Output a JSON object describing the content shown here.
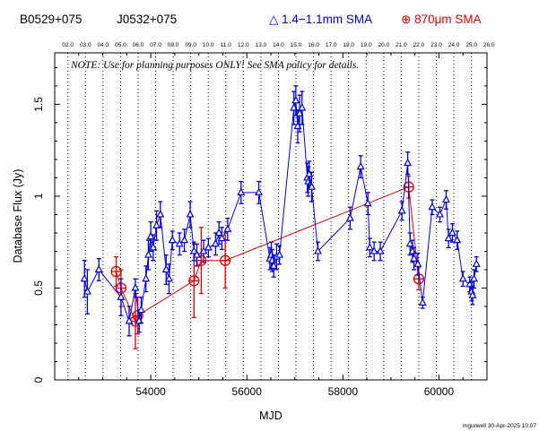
{
  "header": {
    "source1": "B0529+075",
    "source2": "J0532+075",
    "legend_sma_label": "1.4−1.1mm SMA",
    "legend_870_label": "870μm SMA"
  },
  "footer": {
    "stamp": "mgurwell 30-Apr-2025 10:07"
  },
  "colors": {
    "band_1mm": "#0000dd",
    "band_870": "#dd0000",
    "frame": "#000000"
  },
  "chart_data": {
    "type": "scatter",
    "xlabel": "MJD",
    "ylabel": "Database Flux (Jy)",
    "note": "NOTE: Use for planning purposes ONLY!  See SMA policy for details.",
    "xlim": [
      52000,
      61000
    ],
    "ylim": [
      0,
      1.78
    ],
    "x_ticks": [
      54000,
      56000,
      58000,
      60000
    ],
    "y_ticks": [
      0,
      0.5,
      1,
      1.5
    ],
    "year_labels": [
      "02.0",
      "03.0",
      "04.0",
      "05.0",
      "06.0",
      "07.0",
      "08.0",
      "09.0",
      "10.0",
      "11.0",
      "12.0",
      "13.0",
      "14.0",
      "15.0",
      "16.0",
      "17.0",
      "18.0",
      "19.0",
      "20.0",
      "21.0",
      "22.0",
      "23.0",
      "24.0",
      "25.0",
      "26.0"
    ],
    "year_mjd": [
      52275,
      52640,
      53005,
      53371,
      53736,
      54101,
      54466,
      54832,
      55197,
      55562,
      55927,
      56293,
      56658,
      57023,
      57388,
      57754,
      58119,
      58484,
      58849,
      59215,
      59580,
      59945,
      60310,
      60676,
      61041
    ],
    "legend_position": "top-right",
    "series": [
      {
        "name": "1.4−1.1mm SMA",
        "marker": "triangle",
        "x": [
          52620,
          52680,
          52920,
          53380,
          53550,
          53680,
          53760,
          53800,
          53900,
          53950,
          54000,
          54050,
          54120,
          54200,
          54320,
          54380,
          54450,
          54600,
          54700,
          54820,
          54900,
          54960,
          55100,
          55200,
          55350,
          55420,
          55480,
          55600,
          55880,
          56250,
          56480,
          56510,
          56530,
          56560,
          56620,
          56680,
          56980,
          57020,
          57060,
          57100,
          57150,
          57260,
          57280,
          57300,
          57350,
          57480,
          58150,
          58370,
          58520,
          58560,
          58650,
          58780,
          59230,
          59350,
          59400,
          59450,
          59480,
          59560,
          59660,
          59860,
          60020,
          60150,
          60200,
          60280,
          60380,
          60500,
          60640,
          60680,
          60700,
          60730,
          60780
        ],
        "y": [
          0.55,
          0.48,
          0.6,
          0.45,
          0.32,
          0.5,
          0.32,
          0.38,
          0.55,
          0.68,
          0.78,
          0.72,
          0.84,
          0.9,
          0.6,
          0.55,
          0.76,
          0.74,
          0.76,
          0.9,
          0.7,
          0.68,
          0.7,
          0.72,
          0.74,
          0.8,
          0.77,
          0.82,
          1.02,
          1.02,
          0.66,
          0.68,
          0.65,
          0.62,
          0.67,
          0.68,
          1.48,
          1.52,
          1.38,
          1.45,
          1.48,
          1.1,
          1.08,
          1.12,
          1.05,
          0.7,
          0.88,
          1.16,
          0.96,
          0.72,
          0.7,
          0.7,
          0.92,
          1.18,
          0.74,
          0.7,
          0.66,
          0.63,
          0.42,
          0.94,
          0.9,
          0.98,
          0.77,
          0.8,
          0.76,
          0.55,
          0.52,
          0.48,
          0.46,
          0.55,
          0.63
        ],
        "err": [
          0.1,
          0.12,
          0.06,
          0.1,
          0.08,
          0.05,
          0.06,
          0.07,
          0.07,
          0.08,
          0.08,
          0.07,
          0.08,
          0.07,
          0.08,
          0.08,
          0.05,
          0.06,
          0.06,
          0.07,
          0.05,
          0.06,
          0.06,
          0.05,
          0.06,
          0.06,
          0.06,
          0.06,
          0.06,
          0.06,
          0.06,
          0.07,
          0.06,
          0.06,
          0.07,
          0.05,
          0.09,
          0.08,
          0.09,
          0.1,
          0.09,
          0.08,
          0.08,
          0.07,
          0.08,
          0.05,
          0.06,
          0.06,
          0.06,
          0.05,
          0.05,
          0.05,
          0.05,
          0.06,
          0.06,
          0.06,
          0.06,
          0.06,
          0.03,
          0.04,
          0.04,
          0.05,
          0.05,
          0.05,
          0.05,
          0.04,
          0.04,
          0.05,
          0.05,
          0.05,
          0.04
        ]
      },
      {
        "name": "870μm SMA",
        "marker": "circle-plus",
        "x": [
          53280,
          53380,
          53680,
          53730,
          54900,
          55050,
          55550,
          59370,
          59580
        ],
        "y": [
          0.59,
          0.5,
          0.32,
          0.35,
          0.54,
          0.65,
          0.65,
          1.05,
          0.55
        ],
        "err": [
          0.08,
          0.1,
          0.15,
          0.1,
          0.2,
          0.18,
          0.15,
          0.06,
          0.06
        ]
      }
    ]
  }
}
